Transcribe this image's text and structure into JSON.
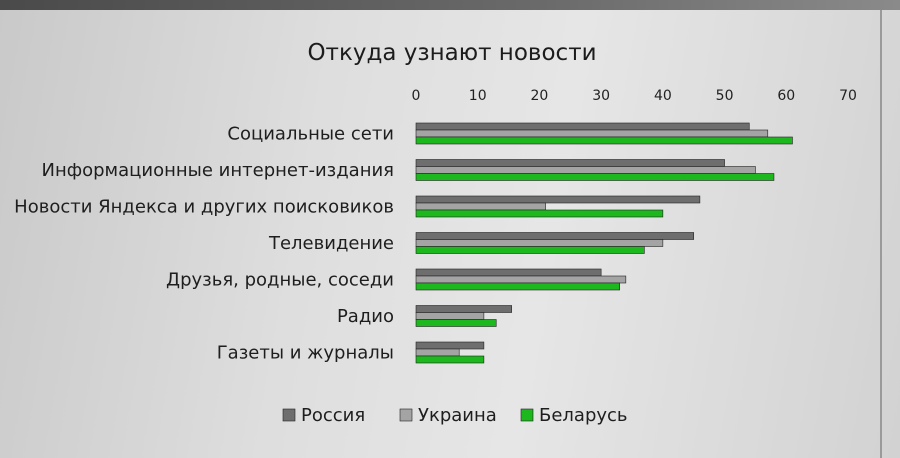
{
  "chart_data": {
    "type": "bar",
    "orientation": "horizontal",
    "title": "Откуда узнают новости",
    "categories": [
      "Социальные сети",
      "Информационные интернет-издания",
      "Новости Яндекса и других поисковиков",
      "Телевидение",
      "Друзья, родные, соседи",
      "Радио",
      "Газеты и журналы"
    ],
    "series": [
      {
        "name": "Россия",
        "color": "#6e6e6e",
        "values": [
          54,
          50,
          46,
          45,
          30,
          15.5,
          11
        ]
      },
      {
        "name": "Украина",
        "color": "#a4a4a4",
        "values": [
          57,
          55,
          21,
          40,
          34,
          11,
          7
        ]
      },
      {
        "name": "Беларусь",
        "color": "#1db81d",
        "values": [
          61,
          58,
          40,
          37,
          33,
          13,
          11
        ]
      }
    ],
    "xlim": [
      0,
      70
    ],
    "xticks": [
      "0",
      "10",
      "20",
      "30",
      "40",
      "50",
      "60",
      "70"
    ],
    "xaxis_position": "top",
    "legend_position": "bottom",
    "grid": false
  }
}
